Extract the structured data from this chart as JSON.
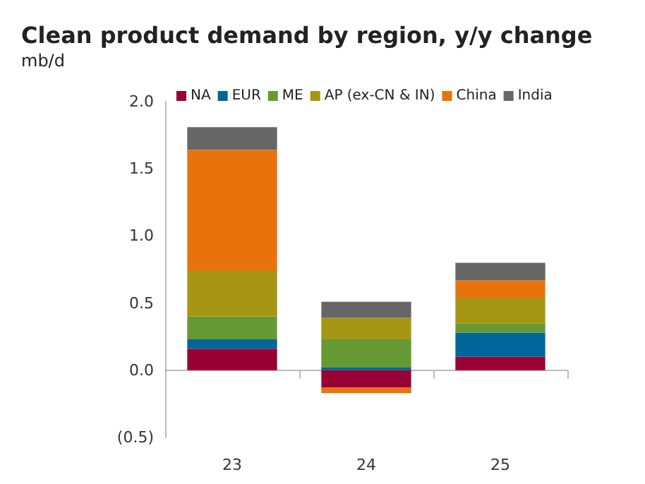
{
  "chart_data": {
    "type": "bar",
    "title": "Clean product demand by region, y/y change",
    "subtitle": "mb/d",
    "stacked": true,
    "categories": [
      "23",
      "24",
      "25"
    ],
    "series": [
      {
        "name": "NA",
        "color": "#990033",
        "values": [
          0.16,
          -0.13,
          0.1
        ]
      },
      {
        "name": "EUR",
        "color": "#006699",
        "values": [
          0.07,
          0.02,
          0.18
        ]
      },
      {
        "name": "ME",
        "color": "#669933",
        "values": [
          0.17,
          0.21,
          0.07
        ]
      },
      {
        "name": "AP (ex-CN & IN)",
        "color": "#a69614",
        "values": [
          0.34,
          0.16,
          0.19
        ]
      },
      {
        "name": "China",
        "color": "#e8730c",
        "values": [
          0.9,
          -0.04,
          0.13
        ]
      },
      {
        "name": "India",
        "color": "#666666",
        "values": [
          0.17,
          0.12,
          0.13
        ]
      }
    ],
    "ylim": [
      -0.5,
      2
    ],
    "yticks": [
      {
        "value": -0.5,
        "label": "(0.5)"
      },
      {
        "value": 0,
        "label": "0.0"
      },
      {
        "value": 0.5,
        "label": "0.5"
      },
      {
        "value": 1,
        "label": "1.0"
      },
      {
        "value": 1.5,
        "label": "1.5"
      },
      {
        "value": 2,
        "label": "2.0"
      }
    ],
    "legend": "top"
  }
}
